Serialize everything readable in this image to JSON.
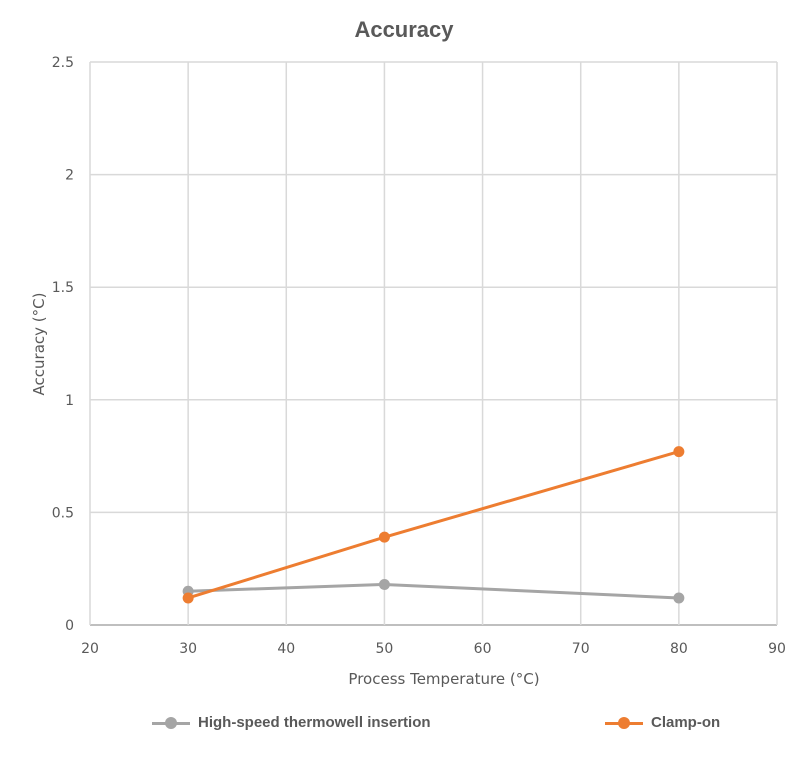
{
  "chart_data": {
    "type": "line",
    "title": "Accuracy",
    "xlabel": "Process Temperature (°C)",
    "ylabel": "Accuracy (°C)",
    "xlim": [
      20,
      90
    ],
    "ylim": [
      0,
      2.5
    ],
    "x_ticks": [
      20,
      30,
      40,
      50,
      60,
      70,
      80,
      90
    ],
    "y_ticks": [
      0,
      0.5,
      1,
      1.5,
      2,
      2.5
    ],
    "grid": true,
    "legend_position": "bottom",
    "x": [
      30,
      50,
      80
    ],
    "series": [
      {
        "name": "High-speed thermowell insertion",
        "color": "#A5A5A5",
        "values": [
          0.15,
          0.18,
          0.12
        ]
      },
      {
        "name": "Clamp-on",
        "color": "#ED7D31",
        "values": [
          0.12,
          0.39,
          0.77
        ]
      }
    ]
  },
  "legend": {
    "items": [
      {
        "label": "High-speed thermowell insertion",
        "color": "#A5A5A5"
      },
      {
        "label": "Clamp-on",
        "color": "#ED7D31"
      }
    ]
  }
}
